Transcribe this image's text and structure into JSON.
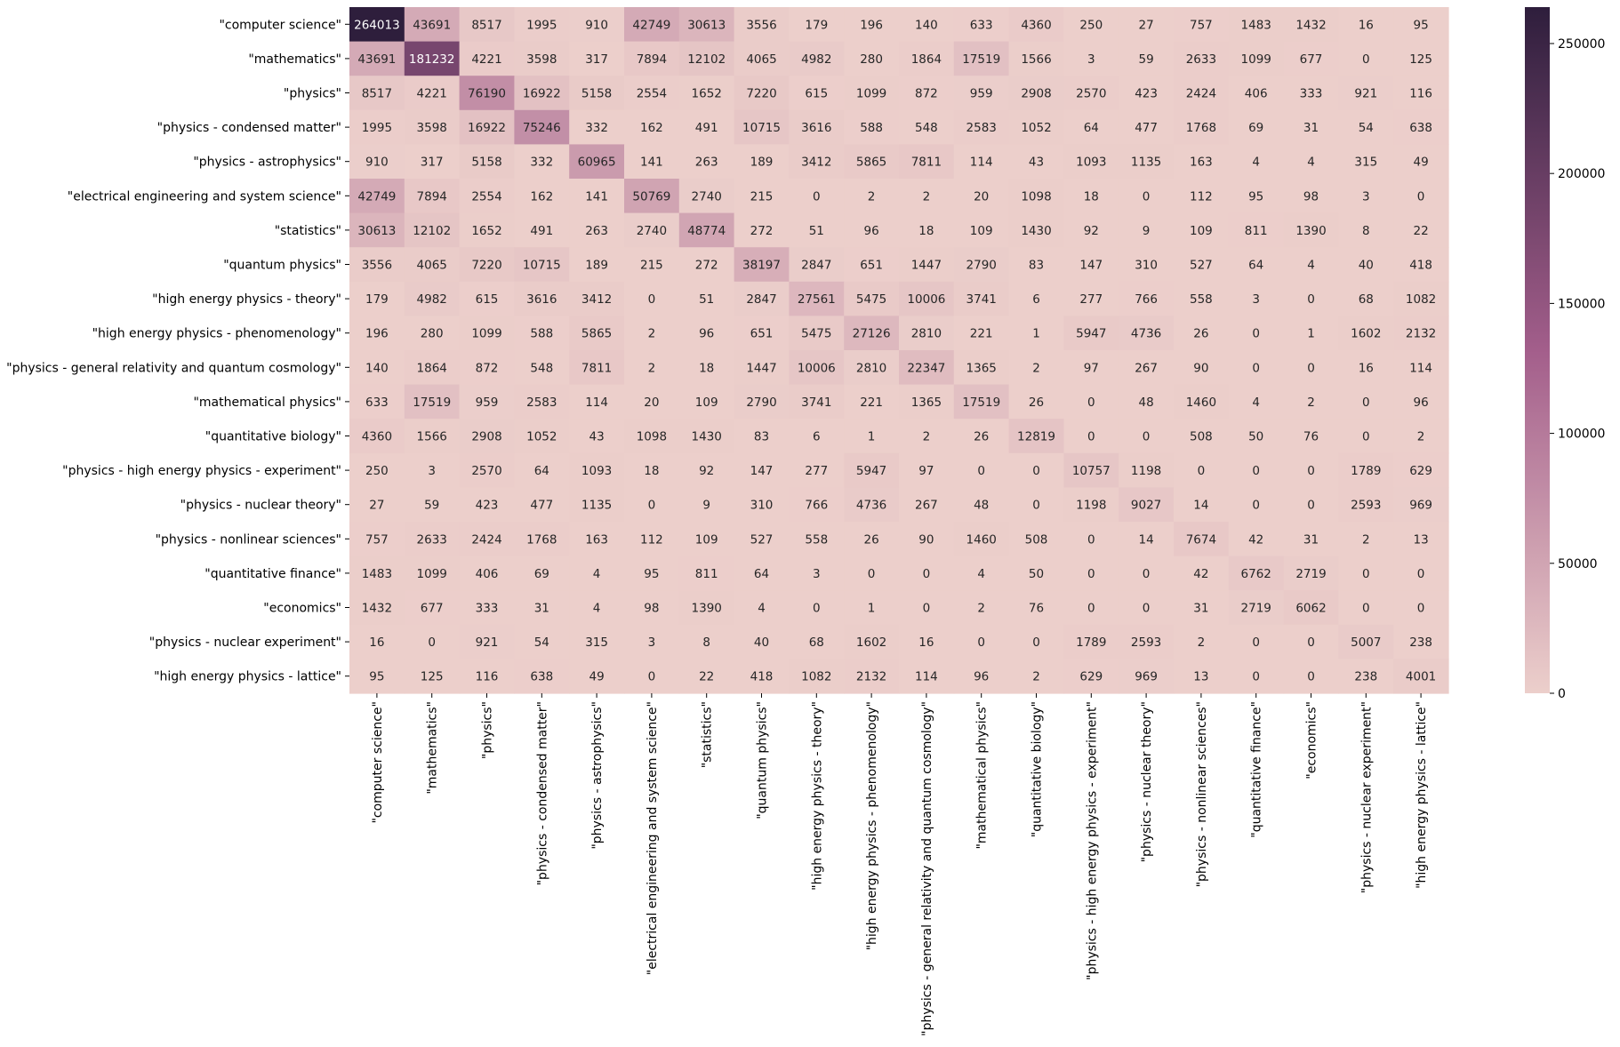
{
  "chart_data": {
    "type": "heatmap",
    "row_labels": [
      "\"computer science\"",
      "\"mathematics\"",
      "\"physics\"",
      "\"physics - condensed matter\"",
      "\"physics - astrophysics\"",
      "\"electrical engineering and system science\"",
      "\"statistics\"",
      "\"quantum physics\"",
      "\"high energy physics - theory\"",
      "\"high energy physics - phenomenology\"",
      "\"physics - general relativity and quantum cosmology\"",
      "\"mathematical physics\"",
      "\"quantitative biology\"",
      "\"physics - high energy physics - experiment\"",
      "\"physics - nuclear theory\"",
      "\"physics - nonlinear sciences\"",
      "\"quantitative finance\"",
      "\"economics\"",
      "\"physics - nuclear experiment\"",
      "\"high energy physics - lattice\""
    ],
    "col_labels": [
      "\"computer science\"",
      "\"mathematics\"",
      "\"physics\"",
      "\"physics - condensed matter\"",
      "\"physics - astrophysics\"",
      "\"electrical engineering and system science\"",
      "\"statistics\"",
      "\"quantum physics\"",
      "\"high energy physics - theory\"",
      "\"high energy physics - phenomenology\"",
      "\"physics - general relativity and quantum cosmology\"",
      "\"mathematical physics\"",
      "\"quantitative biology\"",
      "\"physics - high energy physics - experiment\"",
      "\"physics - nuclear theory\"",
      "\"physics - nonlinear sciences\"",
      "\"quantitative finance\"",
      "\"economics\"",
      "\"physics - nuclear experiment\"",
      "\"high energy physics - lattice\""
    ],
    "values": [
      [
        264013,
        43691,
        8517,
        1995,
        910,
        42749,
        30613,
        3556,
        179,
        196,
        140,
        633,
        4360,
        250,
        27,
        757,
        1483,
        1432,
        16,
        95
      ],
      [
        43691,
        181232,
        4221,
        3598,
        317,
        7894,
        12102,
        4065,
        4982,
        280,
        1864,
        17519,
        1566,
        3,
        59,
        2633,
        1099,
        677,
        0,
        125
      ],
      [
        8517,
        4221,
        76190,
        16922,
        5158,
        2554,
        1652,
        7220,
        615,
        1099,
        872,
        959,
        2908,
        2570,
        423,
        2424,
        406,
        333,
        921,
        116
      ],
      [
        1995,
        3598,
        16922,
        75246,
        332,
        162,
        491,
        10715,
        3616,
        588,
        548,
        2583,
        1052,
        64,
        477,
        1768,
        69,
        31,
        54,
        638
      ],
      [
        910,
        317,
        5158,
        332,
        60965,
        141,
        263,
        189,
        3412,
        5865,
        7811,
        114,
        43,
        1093,
        1135,
        163,
        4,
        4,
        315,
        49
      ],
      [
        42749,
        7894,
        2554,
        162,
        141,
        50769,
        2740,
        215,
        0,
        2,
        2,
        20,
        1098,
        18,
        0,
        112,
        95,
        98,
        3,
        0
      ],
      [
        30613,
        12102,
        1652,
        491,
        263,
        2740,
        48774,
        272,
        51,
        96,
        18,
        109,
        1430,
        92,
        9,
        109,
        811,
        1390,
        8,
        22
      ],
      [
        3556,
        4065,
        7220,
        10715,
        189,
        215,
        272,
        38197,
        2847,
        651,
        1447,
        2790,
        83,
        147,
        310,
        527,
        64,
        4,
        40,
        418
      ],
      [
        179,
        4982,
        615,
        3616,
        3412,
        0,
        51,
        2847,
        27561,
        5475,
        10006,
        3741,
        6,
        277,
        766,
        558,
        3,
        0,
        68,
        1082
      ],
      [
        196,
        280,
        1099,
        588,
        5865,
        2,
        96,
        651,
        5475,
        27126,
        2810,
        221,
        1,
        5947,
        4736,
        26,
        0,
        1,
        1602,
        2132
      ],
      [
        140,
        1864,
        872,
        548,
        7811,
        2,
        18,
        1447,
        10006,
        2810,
        22347,
        1365,
        2,
        97,
        267,
        90,
        0,
        0,
        16,
        114
      ],
      [
        633,
        17519,
        959,
        2583,
        114,
        20,
        109,
        2790,
        3741,
        221,
        1365,
        17519,
        26,
        0,
        48,
        1460,
        4,
        2,
        0,
        96
      ],
      [
        4360,
        1566,
        2908,
        1052,
        43,
        1098,
        1430,
        83,
        6,
        1,
        2,
        26,
        12819,
        0,
        0,
        508,
        50,
        76,
        0,
        2
      ],
      [
        250,
        3,
        2570,
        64,
        1093,
        18,
        92,
        147,
        277,
        5947,
        97,
        0,
        0,
        10757,
        1198,
        0,
        0,
        0,
        1789,
        629
      ],
      [
        27,
        59,
        423,
        477,
        1135,
        0,
        9,
        310,
        766,
        4736,
        267,
        48,
        0,
        1198,
        9027,
        14,
        0,
        0,
        2593,
        969
      ],
      [
        757,
        2633,
        2424,
        1768,
        163,
        112,
        109,
        527,
        558,
        26,
        90,
        1460,
        508,
        0,
        14,
        7674,
        42,
        31,
        2,
        13
      ],
      [
        1483,
        1099,
        406,
        69,
        4,
        95,
        811,
        64,
        3,
        0,
        0,
        4,
        50,
        0,
        0,
        42,
        6762,
        2719,
        0,
        0
      ],
      [
        1432,
        677,
        333,
        31,
        4,
        98,
        1390,
        4,
        0,
        1,
        0,
        2,
        76,
        0,
        0,
        31,
        2719,
        6062,
        0,
        0
      ],
      [
        16,
        0,
        921,
        54,
        315,
        3,
        8,
        40,
        68,
        1602,
        16,
        0,
        0,
        1789,
        2593,
        2,
        0,
        0,
        5007,
        238
      ],
      [
        95,
        125,
        116,
        638,
        49,
        0,
        22,
        418,
        1082,
        2132,
        114,
        96,
        2,
        629,
        969,
        13,
        0,
        0,
        238,
        4001
      ]
    ],
    "colorbar": {
      "min": 0,
      "max": 264013,
      "ticks": [
        0,
        50000,
        100000,
        150000,
        200000,
        250000
      ],
      "tick_labels": [
        "0",
        "50000",
        "100000",
        "150000",
        "200000",
        "250000"
      ]
    },
    "colormap": {
      "low": "#eccfcb",
      "mid": "#a35e8b",
      "high": "#2e1e3c"
    },
    "title": "",
    "xlabel": "",
    "ylabel": ""
  }
}
